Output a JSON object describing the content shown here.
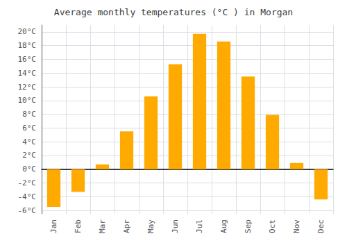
{
  "chart_data": {
    "type": "bar",
    "title": "Average monthly temperatures (°C ) in Morgan",
    "categories": [
      "Jan",
      "Feb",
      "Mar",
      "Apr",
      "May",
      "Jun",
      "Jul",
      "Aug",
      "Sep",
      "Oct",
      "Nov",
      "Dec"
    ],
    "values": [
      -5.5,
      -3.3,
      0.7,
      5.5,
      10.6,
      15.3,
      19.7,
      18.6,
      13.5,
      7.9,
      0.9,
      -4.4
    ],
    "color": "#FFAA00",
    "ylim": [
      -6.5,
      21
    ],
    "yticks": [
      {
        "value": -6,
        "label": "-6°C"
      },
      {
        "value": -4,
        "label": "-4°C"
      },
      {
        "value": -2,
        "label": "-2°C"
      },
      {
        "value": 0,
        "label": "0°C"
      },
      {
        "value": 2,
        "label": "2°C"
      },
      {
        "value": 4,
        "label": "4°C"
      },
      {
        "value": 6,
        "label": "6°C"
      },
      {
        "value": 8,
        "label": "8°C"
      },
      {
        "value": 10,
        "label": "10°C"
      },
      {
        "value": 12,
        "label": "12°C"
      },
      {
        "value": 14,
        "label": "14°C"
      },
      {
        "value": 16,
        "label": "16°C"
      },
      {
        "value": 18,
        "label": "18°C"
      },
      {
        "value": 20,
        "label": "20°C"
      }
    ],
    "grid": true
  }
}
